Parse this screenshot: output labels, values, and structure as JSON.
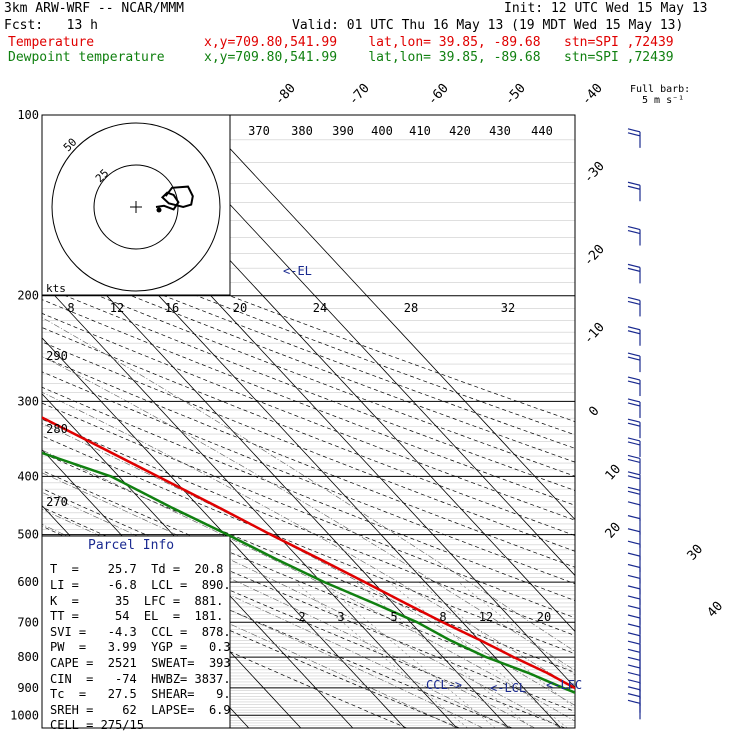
{
  "header": {
    "model": "3km ARW-WRF -- NCAR/MMM",
    "init": "Init: 12 UTC Wed 15 May 13",
    "fcst": "Fcst:   13 h",
    "valid": "Valid: 01 UTC Thu 16 May 13 (19 MDT Wed 15 May 13)",
    "temp_label": "Temperature",
    "dew_label": "Dewpoint temperature",
    "loc_line": "x,y=709.80,541.99    lat,lon= 39.85, -89.68   stn=SPI ,72439"
  },
  "colors": {
    "temperature": "#e00000",
    "dewpoint": "#108010",
    "text_blue": "#1a2a90",
    "grid": "#000000"
  },
  "wind_legend": {
    "title": "Full barb:",
    "value": "5 m s⁻¹"
  },
  "hodograph": {
    "unit": "kts",
    "rings": [
      "25",
      "50"
    ]
  },
  "parcel_info": {
    "title": "Parcel Info",
    "rows": [
      "T  =    25.7  Td =  20.8",
      "LI =    -6.8  LCL =  890.",
      "K  =     35  LFC =  881.",
      "TT =     54  EL  =  181.",
      "SVI =   -4.3  CCL =  878.",
      "PW  =   3.99  YGP =   0.3",
      "CAPE =  2521  SWEAT=  393",
      "CIN  =   -74  HWBZ= 3837.",
      "Tc  =   27.5  SHEAR=   9.",
      "SREH =    62  LAPSE=  6.9",
      "CELL = 275/15"
    ]
  },
  "chart_data": {
    "type": "line",
    "title": "",
    "xlabel": "",
    "ylabel": "",
    "pressure_levels": [
      "100",
      "200",
      "300",
      "400",
      "500",
      "600",
      "700",
      "800",
      "900",
      "1000"
    ],
    "isotherm_labels": [
      "-80",
      "-70",
      "-60",
      "-50",
      "-40",
      "-30",
      "-20",
      "-10",
      "0",
      "10",
      "20",
      "30",
      "40"
    ],
    "theta_labels": [
      "370",
      "380",
      "390",
      "400",
      "410",
      "420",
      "430",
      "440"
    ],
    "theta_left_labels": [
      "290",
      "280",
      "270"
    ],
    "mixing_ratio_labels_top": [
      "8",
      "12",
      "16",
      "20",
      "24",
      "28",
      "32"
    ],
    "mixing_ratio_labels_bottom": [
      "2",
      "3",
      "5",
      "8",
      "12",
      "20"
    ],
    "annotations": [
      "EL",
      "CCL",
      "LCL",
      "LFC"
    ],
    "series": [
      {
        "name": "Temperature",
        "points": [
          [
            1000,
            25.7
          ],
          [
            950,
            21.6
          ],
          [
            900,
            19.8
          ],
          [
            850,
            17.2
          ],
          [
            800,
            13.6
          ],
          [
            750,
            10.2
          ],
          [
            700,
            6.2
          ],
          [
            650,
            2.4
          ],
          [
            600,
            -1.6
          ],
          [
            550,
            -6.1
          ],
          [
            500,
            -11.2
          ],
          [
            450,
            -16.4
          ],
          [
            400,
            -22.5
          ],
          [
            350,
            -29.4
          ],
          [
            300,
            -37.5
          ],
          [
            250,
            -47.2
          ],
          [
            200,
            -58.3
          ],
          [
            180,
            -60.2
          ],
          [
            150,
            -57.0
          ],
          [
            120,
            -54.4
          ],
          [
            100,
            -55.2
          ]
        ]
      },
      {
        "name": "Dewpoint temperature",
        "points": [
          [
            1000,
            20.8
          ],
          [
            970,
            20.2
          ],
          [
            950,
            19.8
          ],
          [
            920,
            19.3
          ],
          [
            900,
            17.6
          ],
          [
            850,
            13.6
          ],
          [
            800,
            8.3
          ],
          [
            750,
            4.4
          ],
          [
            700,
            1.3
          ],
          [
            650,
            -3.7
          ],
          [
            600,
            -9.4
          ],
          [
            550,
            -14.5
          ],
          [
            500,
            -19.5
          ],
          [
            450,
            -25.5
          ],
          [
            400,
            -31.5
          ],
          [
            350,
            -45.0
          ],
          [
            300,
            -55.0
          ],
          [
            270,
            -66.0
          ],
          [
            250,
            -64.6
          ],
          [
            220,
            -65.8
          ],
          [
            200,
            -66.0
          ],
          [
            180,
            -69.0
          ],
          [
            150,
            -73.0
          ],
          [
            120,
            -78.0
          ],
          [
            100,
            -81.0
          ]
        ]
      }
    ],
    "hodograph_trace": [
      [
        0,
        0
      ],
      [
        1.0,
        0.2
      ],
      [
        2.2,
        -0.4
      ],
      [
        2.8,
        0.8
      ],
      [
        2.2,
        2.0
      ],
      [
        1.4,
        2.4
      ],
      [
        0.8,
        1.6
      ],
      [
        1.6,
        0.6
      ],
      [
        3.4,
        0.0
      ],
      [
        4.4,
        0.4
      ],
      [
        4.6,
        1.8
      ],
      [
        4.0,
        3.4
      ],
      [
        2.0,
        3.2
      ],
      [
        1.2,
        1.8
      ]
    ]
  }
}
